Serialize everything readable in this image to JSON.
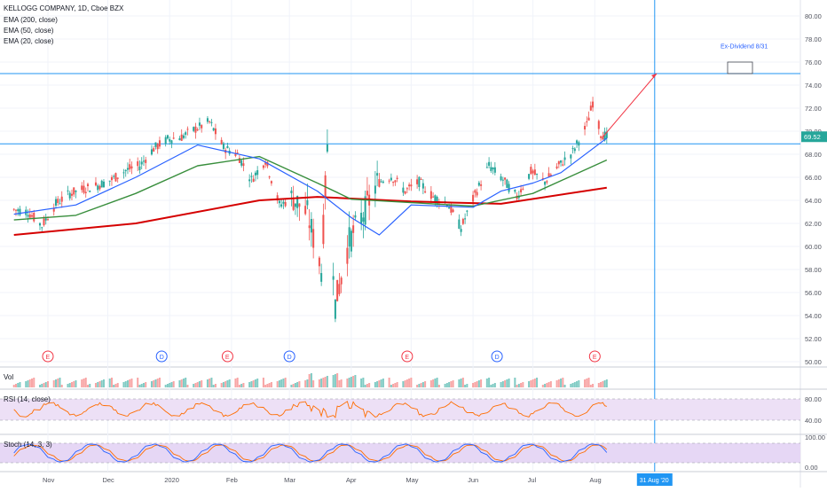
{
  "legend": {
    "symbol": "KELLOGG COMPANY, 1D, Cboe BZX",
    "ema200": "EMA (200, close)",
    "ema50": "EMA (50, close)",
    "ema20": "EMA (20, close)"
  },
  "price_axis": {
    "ticks": [
      "80.00",
      "78.00",
      "76.00",
      "74.00",
      "72.00",
      "70.00",
      "68.00",
      "66.00",
      "64.00",
      "62.00",
      "60.00",
      "58.00",
      "56.00",
      "54.00",
      "52.00",
      "50.00"
    ],
    "current_price": "69.52"
  },
  "time_axis": {
    "ticks": [
      "Nov",
      "Dec",
      "2020",
      "Feb",
      "Mar",
      "Apr",
      "May",
      "Jun",
      "Jul",
      "Aug"
    ],
    "cursor_label": "31 Aug '20"
  },
  "annotations": {
    "ex_dividend": "Ex-Dividend 8/31"
  },
  "events": [
    "E",
    "D",
    "E",
    "D",
    "E",
    "D",
    "E"
  ],
  "panes": {
    "volume": {
      "label": "Vol"
    },
    "rsi": {
      "label": "RSI (14, close)",
      "ticks": [
        "80.00",
        "40.00"
      ]
    },
    "stoch": {
      "label": "Stoch (14, 3, 3)",
      "ticks": [
        "100.00",
        "0.00"
      ]
    }
  },
  "colors": {
    "up": "#26a69a",
    "down": "#ef5350",
    "ema20": "#2962ff",
    "ema50": "#388e3c",
    "ema200": "#d50000",
    "hline": "#2196f3",
    "rsi_line": "#ff6d00",
    "rsi_band": "#ede0f6",
    "stoch_k": "#2962ff",
    "stoch_d": "#ff6d00",
    "stoch_band": "#e6d7f5",
    "price_tag": "#26a69a",
    "cursor_tag": "#2196f3"
  },
  "chart_data": {
    "type": "candlestick",
    "symbol": "KELLOGG COMPANY",
    "interval": "1D",
    "ylim": [
      50,
      80
    ],
    "horizontal_levels": [
      75.0,
      68.9,
      69.52
    ],
    "close_series": [
      [
        "2019-10-15",
        63.2
      ],
      [
        "2019-10-22",
        63.0
      ],
      [
        "2019-10-29",
        61.8
      ],
      [
        "2019-11-05",
        63.7
      ],
      [
        "2019-11-12",
        64.6
      ],
      [
        "2019-11-19",
        65.0
      ],
      [
        "2019-11-26",
        65.3
      ],
      [
        "2019-12-03",
        65.8
      ],
      [
        "2019-12-10",
        66.6
      ],
      [
        "2019-12-17",
        67.0
      ],
      [
        "2019-12-24",
        68.5
      ],
      [
        "2019-12-31",
        69.3
      ],
      [
        "2020-01-07",
        69.5
      ],
      [
        "2020-01-14",
        70.2
      ],
      [
        "2020-01-21",
        70.8
      ],
      [
        "2020-01-28",
        68.6
      ],
      [
        "2020-02-04",
        68.0
      ],
      [
        "2020-02-11",
        65.8
      ],
      [
        "2020-02-18",
        67.5
      ],
      [
        "2020-02-25",
        63.6
      ],
      [
        "2020-03-03",
        64.2
      ],
      [
        "2020-03-10",
        62.8
      ],
      [
        "2020-03-17",
        58.0
      ],
      [
        "2020-03-20",
        68.5
      ],
      [
        "2020-03-24",
        55.0
      ],
      [
        "2020-03-31",
        60.5
      ],
      [
        "2020-04-07",
        62.8
      ],
      [
        "2020-04-14",
        65.5
      ],
      [
        "2020-04-21",
        66.1
      ],
      [
        "2020-04-28",
        64.8
      ],
      [
        "2020-05-05",
        65.6
      ],
      [
        "2020-05-12",
        64.3
      ],
      [
        "2020-05-19",
        63.8
      ],
      [
        "2020-05-26",
        61.6
      ],
      [
        "2020-06-02",
        64.5
      ],
      [
        "2020-06-09",
        67.0
      ],
      [
        "2020-06-16",
        65.8
      ],
      [
        "2020-06-23",
        64.3
      ],
      [
        "2020-06-30",
        66.5
      ],
      [
        "2020-07-07",
        65.6
      ],
      [
        "2020-07-14",
        67.0
      ],
      [
        "2020-07-21",
        68.2
      ],
      [
        "2020-07-28",
        70.5
      ],
      [
        "2020-07-31",
        72.5
      ],
      [
        "2020-08-04",
        69.8
      ],
      [
        "2020-08-07",
        69.52
      ]
    ],
    "ema20": [
      [
        "2019-10-15",
        62.8
      ],
      [
        "2019-11-15",
        63.6
      ],
      [
        "2019-12-15",
        66.0
      ],
      [
        "2020-01-15",
        68.8
      ],
      [
        "2020-02-15",
        67.6
      ],
      [
        "2020-03-15",
        64.8
      ],
      [
        "2020-04-01",
        62.5
      ],
      [
        "2020-04-15",
        61.0
      ],
      [
        "2020-05-01",
        63.6
      ],
      [
        "2020-06-01",
        63.4
      ],
      [
        "2020-06-15",
        64.8
      ],
      [
        "2020-07-01",
        65.5
      ],
      [
        "2020-07-15",
        66.4
      ],
      [
        "2020-08-07",
        69.4
      ]
    ],
    "ema50": [
      [
        "2019-10-15",
        62.3
      ],
      [
        "2019-11-15",
        62.7
      ],
      [
        "2019-12-15",
        64.6
      ],
      [
        "2020-01-15",
        67.0
      ],
      [
        "2020-02-15",
        67.8
      ],
      [
        "2020-03-15",
        65.5
      ],
      [
        "2020-04-01",
        64.1
      ],
      [
        "2020-05-01",
        63.8
      ],
      [
        "2020-06-01",
        63.5
      ],
      [
        "2020-07-01",
        64.6
      ],
      [
        "2020-08-07",
        67.5
      ]
    ],
    "ema200": [
      [
        "2019-10-15",
        61.0
      ],
      [
        "2019-12-15",
        62.0
      ],
      [
        "2020-02-15",
        64.0
      ],
      [
        "2020-03-15",
        64.3
      ],
      [
        "2020-05-01",
        63.9
      ],
      [
        "2020-06-15",
        63.7
      ],
      [
        "2020-08-07",
        65.1
      ]
    ],
    "rsi_ticks": [
      80,
      40
    ],
    "stoch_ticks": [
      100,
      0
    ]
  }
}
